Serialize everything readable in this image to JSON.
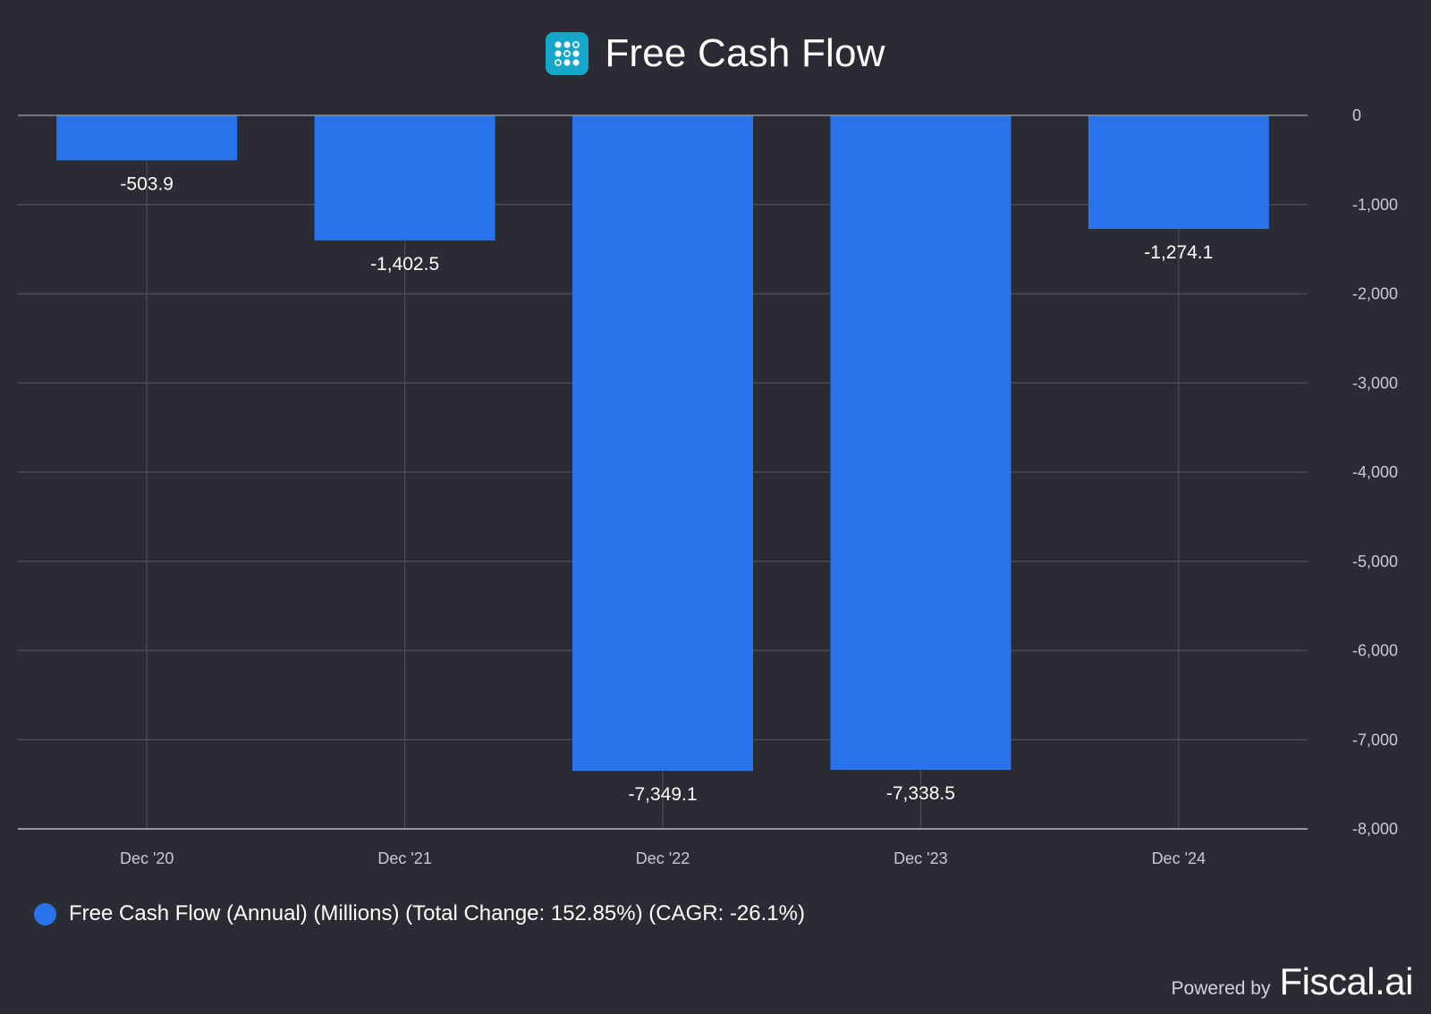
{
  "header": {
    "title": "Free Cash Flow",
    "logo_icon": "grid-dots-icon"
  },
  "chart_data": {
    "type": "bar",
    "title": "Free Cash Flow",
    "categories": [
      "Dec '20",
      "Dec '21",
      "Dec '22",
      "Dec '23",
      "Dec '24"
    ],
    "series": [
      {
        "name": "Free Cash Flow (Annual) (Millions) (Total Change: 152.85%) (CAGR: -26.1%)",
        "values": [
          -503.9,
          -1402.5,
          -7349.1,
          -7338.5,
          -1274.1
        ],
        "labels": [
          "-503.9",
          "-1,402.5",
          "-7,349.1",
          "-7,338.5",
          "-1,274.1"
        ],
        "color": "#2872ea"
      }
    ],
    "ylim": [
      -8000,
      0
    ],
    "yticks": [
      0,
      -1000,
      -2000,
      -3000,
      -4000,
      -5000,
      -6000,
      -7000,
      -8000
    ],
    "ytick_labels": [
      "0",
      "-1,000",
      "-2,000",
      "-3,000",
      "-4,000",
      "-5,000",
      "-6,000",
      "-7,000",
      "-8,000"
    ],
    "grid": true,
    "y_axis_side": "right",
    "legend_position": "bottom-left"
  },
  "legend": {
    "text": "Free Cash Flow (Annual) (Millions) (Total Change: 152.85%) (CAGR: -26.1%)"
  },
  "footer": {
    "powered_by": "Powered by",
    "brand": "Fiscal.ai"
  },
  "colors": {
    "background": "#2b2c33",
    "bar": "#2872ea",
    "grid": "#4a4b53",
    "axis_text": "#c9cad0",
    "logo": "#14a7c9"
  }
}
